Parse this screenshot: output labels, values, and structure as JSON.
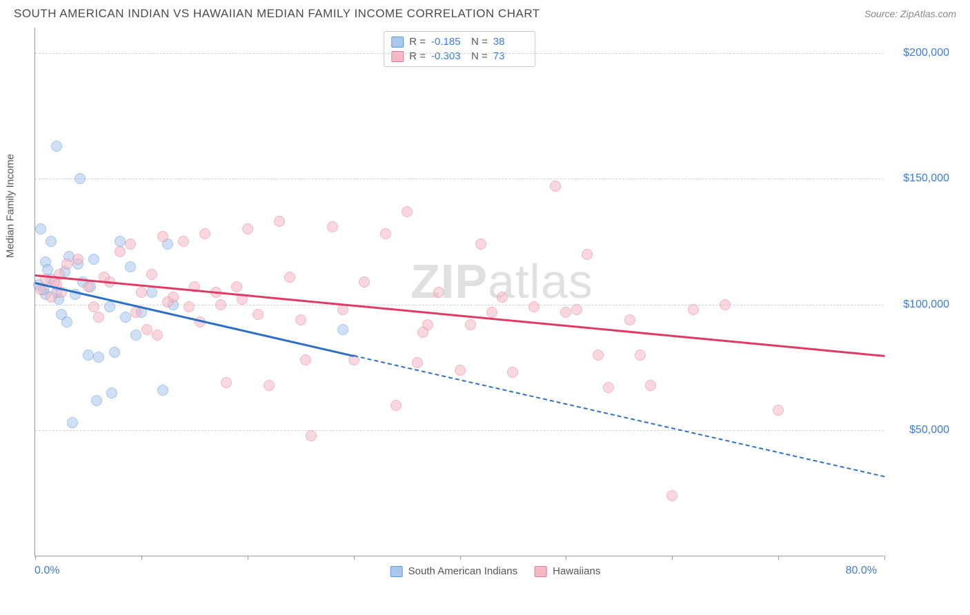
{
  "header": {
    "title": "SOUTH AMERICAN INDIAN VS HAWAIIAN MEDIAN FAMILY INCOME CORRELATION CHART",
    "source": "Source: ZipAtlas.com"
  },
  "watermark": {
    "bold": "ZIP",
    "rest": "atlas"
  },
  "chart": {
    "type": "scatter",
    "background_color": "#ffffff",
    "grid_color": "#d0d0d0",
    "axis_color": "#999999",
    "text_color": "#555555",
    "value_color": "#3b7dd8",
    "y_axis_title": "Median Family Income",
    "xlim": [
      0,
      80
    ],
    "ylim": [
      0,
      210000
    ],
    "x_ticks": [
      0,
      10,
      20,
      30,
      40,
      50,
      60,
      70,
      80
    ],
    "x_tick_labels": {
      "min": "0.0%",
      "max": "80.0%"
    },
    "y_gridlines": [
      50000,
      100000,
      150000,
      200000
    ],
    "y_labels": [
      "$50,000",
      "$100,000",
      "$150,000",
      "$200,000"
    ],
    "point_radius": 8,
    "series": [
      {
        "name": "South American Indians",
        "fill_color": "#a8c8ee",
        "fill_opacity": 0.55,
        "stroke_color": "#5b98d8",
        "trend_color": "#2d6fc4",
        "trend_dash_extend": true,
        "trend": {
          "x1": 0,
          "y1": 109000,
          "x2": 30,
          "y2": 80000,
          "x2_ext": 80,
          "y2_ext": 32000
        },
        "stats": {
          "R": "-0.185",
          "N": "38"
        },
        "points": [
          [
            0.3,
            108000
          ],
          [
            0.5,
            130000
          ],
          [
            1.0,
            117000
          ],
          [
            1.2,
            114000
          ],
          [
            1.5,
            125000
          ],
          [
            2.0,
            163000
          ],
          [
            2.2,
            102000
          ],
          [
            2.5,
            96000
          ],
          [
            3.0,
            93000
          ],
          [
            3.2,
            119000
          ],
          [
            3.5,
            53000
          ],
          [
            3.8,
            104000
          ],
          [
            4.0,
            116000
          ],
          [
            4.2,
            150000
          ],
          [
            4.5,
            109000
          ],
          [
            5.0,
            80000
          ],
          [
            5.2,
            107000
          ],
          [
            5.5,
            118000
          ],
          [
            5.8,
            62000
          ],
          [
            6.0,
            79000
          ],
          [
            7.0,
            99000
          ],
          [
            7.2,
            65000
          ],
          [
            7.5,
            81000
          ],
          [
            8.0,
            125000
          ],
          [
            8.5,
            95000
          ],
          [
            9.0,
            115000
          ],
          [
            9.5,
            88000
          ],
          [
            10.0,
            97000
          ],
          [
            11.0,
            105000
          ],
          [
            12.0,
            66000
          ],
          [
            12.5,
            124000
          ],
          [
            13.0,
            100000
          ],
          [
            1.0,
            104000
          ],
          [
            1.5,
            110000
          ],
          [
            2.0,
            105000
          ],
          [
            2.8,
            113000
          ],
          [
            0.8,
            106000
          ],
          [
            29.0,
            90000
          ]
        ]
      },
      {
        "name": "Hawaiians",
        "fill_color": "#f5b8c4",
        "fill_opacity": 0.55,
        "stroke_color": "#e77b93",
        "trend_color": "#e03a64",
        "trend_dash_extend": false,
        "trend": {
          "x1": 0,
          "y1": 112000,
          "x2": 80,
          "y2": 80000
        },
        "stats": {
          "R": "-0.303",
          "N": "73"
        },
        "points": [
          [
            0.5,
            106000
          ],
          [
            1.0,
            110000
          ],
          [
            1.5,
            103000
          ],
          [
            2.0,
            108000
          ],
          [
            2.5,
            105000
          ],
          [
            3.0,
            116000
          ],
          [
            4.0,
            118000
          ],
          [
            5.0,
            107000
          ],
          [
            5.5,
            99000
          ],
          [
            6.0,
            95000
          ],
          [
            6.5,
            111000
          ],
          [
            7.0,
            109000
          ],
          [
            8.0,
            121000
          ],
          [
            9.0,
            124000
          ],
          [
            9.5,
            97000
          ],
          [
            10.0,
            105000
          ],
          [
            10.5,
            90000
          ],
          [
            11.0,
            112000
          ],
          [
            11.5,
            88000
          ],
          [
            12.0,
            127000
          ],
          [
            13.0,
            103000
          ],
          [
            14.0,
            125000
          ],
          [
            14.5,
            99000
          ],
          [
            15.0,
            107000
          ],
          [
            15.5,
            93000
          ],
          [
            16.0,
            128000
          ],
          [
            17.0,
            105000
          ],
          [
            17.5,
            100000
          ],
          [
            18.0,
            69000
          ],
          [
            19.0,
            107000
          ],
          [
            20.0,
            130000
          ],
          [
            21.0,
            96000
          ],
          [
            22.0,
            68000
          ],
          [
            23.0,
            133000
          ],
          [
            24.0,
            111000
          ],
          [
            25.0,
            94000
          ],
          [
            25.5,
            78000
          ],
          [
            26.0,
            48000
          ],
          [
            28.0,
            131000
          ],
          [
            29.0,
            98000
          ],
          [
            30.0,
            78000
          ],
          [
            31.0,
            109000
          ],
          [
            33.0,
            128000
          ],
          [
            34.0,
            60000
          ],
          [
            35.0,
            137000
          ],
          [
            36.0,
            77000
          ],
          [
            37.0,
            92000
          ],
          [
            38.0,
            105000
          ],
          [
            40.0,
            74000
          ],
          [
            41.0,
            92000
          ],
          [
            42.0,
            124000
          ],
          [
            44.0,
            103000
          ],
          [
            45.0,
            73000
          ],
          [
            47.0,
            99000
          ],
          [
            49.0,
            147000
          ],
          [
            50.0,
            97000
          ],
          [
            51.0,
            98000
          ],
          [
            52.0,
            120000
          ],
          [
            53.0,
            80000
          ],
          [
            54.0,
            67000
          ],
          [
            56.0,
            94000
          ],
          [
            57.0,
            80000
          ],
          [
            58.0,
            68000
          ],
          [
            60.0,
            24000
          ],
          [
            62.0,
            98000
          ],
          [
            65.0,
            100000
          ],
          [
            70.0,
            58000
          ],
          [
            1.8,
            109000
          ],
          [
            2.3,
            112000
          ],
          [
            12.5,
            101000
          ],
          [
            19.5,
            102000
          ],
          [
            36.5,
            89000
          ],
          [
            43.0,
            97000
          ]
        ]
      }
    ],
    "stats_box": {
      "labels": {
        "R": "R =",
        "N": "N ="
      }
    },
    "legend": {
      "position": "bottom-center"
    }
  }
}
